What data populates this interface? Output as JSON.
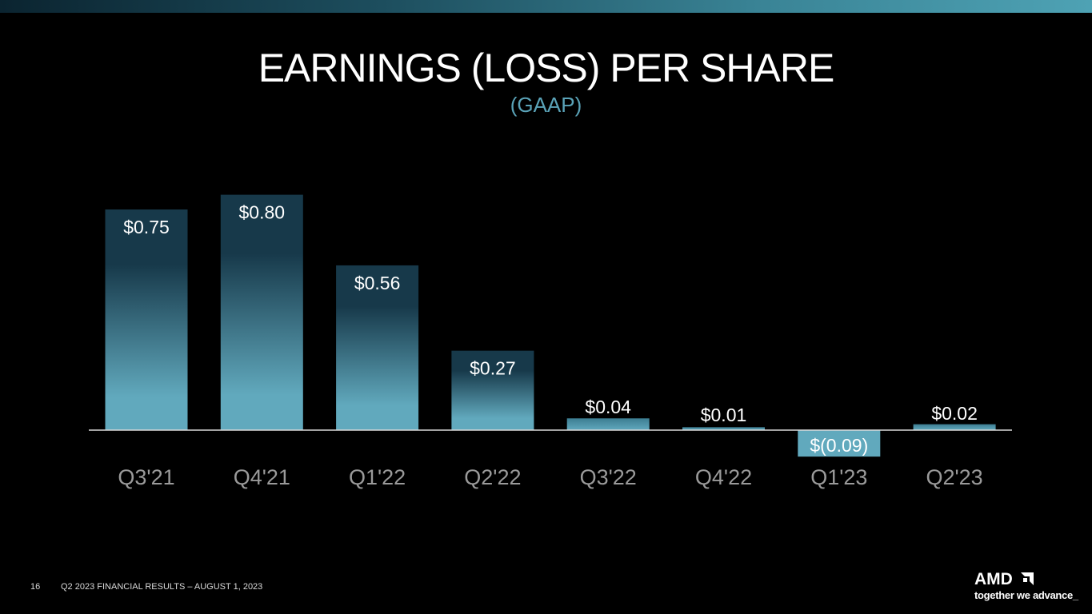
{
  "header": {
    "title": "EARNINGS (LOSS) PER SHARE",
    "subtitle": "(GAAP)"
  },
  "colors": {
    "bar_light": "#61a9bd",
    "bar_dark": "#17394a",
    "axis": "#d9d9d9",
    "tick_label": "#9a9a9a",
    "accent": "#5aa3b8"
  },
  "chart_data": {
    "type": "bar",
    "categories": [
      "Q3'21",
      "Q4'21",
      "Q1'22",
      "Q2'22",
      "Q3'22",
      "Q4'22",
      "Q1'23",
      "Q2'23"
    ],
    "values": [
      0.75,
      0.8,
      0.56,
      0.27,
      0.04,
      0.01,
      -0.09,
      0.02
    ],
    "data_labels": [
      "$0.75",
      "$0.80",
      "$0.56",
      "$0.27",
      "$0.04",
      "$0.01",
      "$(0.09)",
      "$0.02"
    ],
    "grid": false,
    "legend": "none"
  },
  "footer": {
    "page_number": "16",
    "text": "Q2 2023 FINANCIAL RESULTS – AUGUST 1, 2023",
    "logo_word": "AMD",
    "logo_tagline": "together we advance_"
  }
}
